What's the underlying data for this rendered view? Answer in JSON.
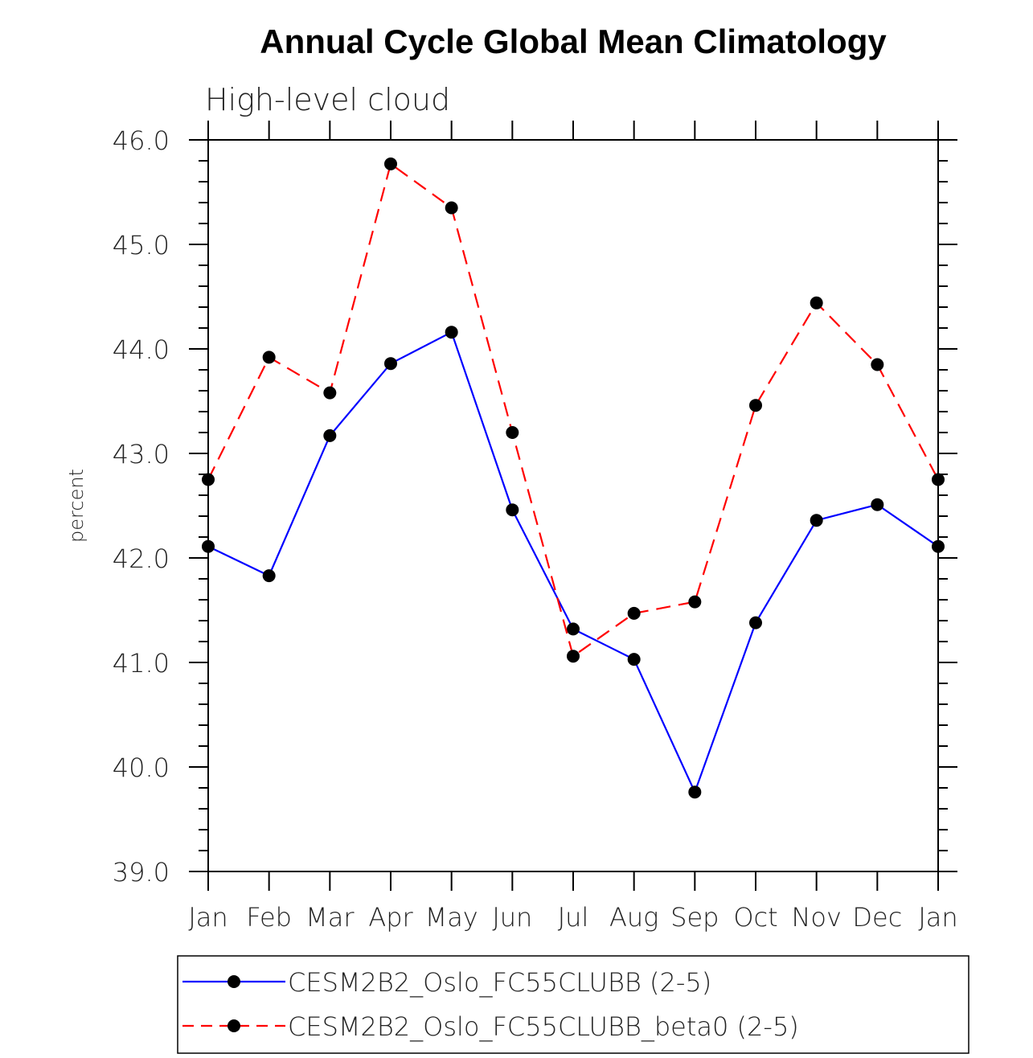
{
  "chart_data": {
    "type": "line",
    "title": "Annual Cycle Global Mean Climatology",
    "subtitle": "High-level cloud",
    "xlabel": "",
    "ylabel": "percent",
    "categories": [
      "Jan",
      "Feb",
      "Mar",
      "Apr",
      "May",
      "Jun",
      "Jul",
      "Aug",
      "Sep",
      "Oct",
      "Nov",
      "Dec",
      "Jan"
    ],
    "ylim": [
      39.0,
      46.0
    ],
    "yticks": [
      39.0,
      40.0,
      41.0,
      42.0,
      43.0,
      44.0,
      45.0,
      46.0
    ],
    "ytick_labels": [
      "39.0",
      "40.0",
      "41.0",
      "42.0",
      "43.0",
      "44.0",
      "45.0",
      "46.0"
    ],
    "y_minor_step": 0.2,
    "grid": false,
    "legend_position": "bottom",
    "series": [
      {
        "name": "CESM2B2_Oslo_FC55CLUBB (2-5)",
        "color": "#0000ff",
        "line_style": "solid",
        "marker": "filled-circle",
        "marker_color": "#000000",
        "values": [
          42.11,
          41.83,
          43.17,
          43.86,
          44.16,
          42.46,
          41.32,
          41.03,
          39.76,
          41.38,
          42.36,
          42.51,
          42.11
        ]
      },
      {
        "name": "CESM2B2_Oslo_FC55CLUBB_beta0 (2-5)",
        "color": "#ff0000",
        "line_style": "dashed",
        "marker": "filled-circle",
        "marker_color": "#000000",
        "values": [
          42.75,
          43.92,
          43.58,
          45.77,
          45.35,
          43.2,
          41.06,
          41.47,
          41.58,
          43.46,
          44.44,
          43.85,
          42.75
        ]
      }
    ]
  }
}
